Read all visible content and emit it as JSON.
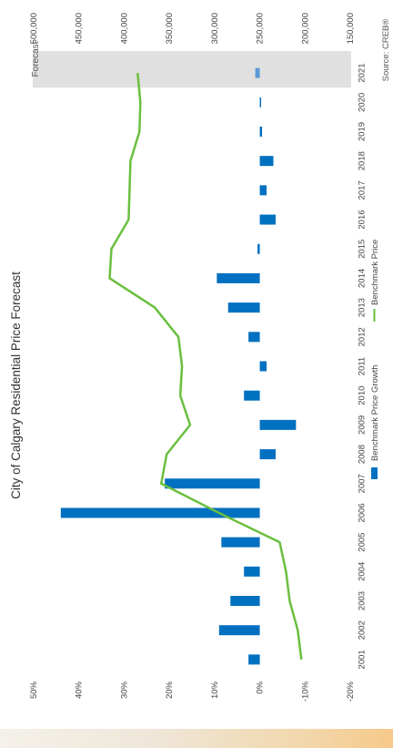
{
  "chart_data": {
    "type": "bar+line",
    "title": "City of Calgary Residential Price Forecast",
    "source": "Source: CREB®",
    "forecast_label": "Forecast",
    "categories": [
      "2001",
      "2002",
      "2003",
      "2004",
      "2005",
      "2006",
      "2007",
      "2008",
      "2009",
      "2010",
      "2011",
      "2012",
      "2013",
      "2014",
      "2015",
      "2016",
      "2017",
      "2018",
      "2019",
      "2020",
      "2021"
    ],
    "bar_series": {
      "name": "Benchmark Price Growth",
      "color": "#0070c0",
      "forecast_color": "#5b9bd5",
      "values": [
        2.5,
        9.0,
        6.5,
        3.5,
        8.5,
        44.0,
        21.0,
        -3.5,
        -8.0,
        3.5,
        -1.5,
        2.5,
        7.0,
        9.5,
        0.5,
        -3.5,
        -1.5,
        -3.0,
        -0.5,
        0.0,
        1.0
      ]
    },
    "line_series": {
      "name": "Benchmark Price",
      "color": "#6abf3f",
      "values": [
        204000,
        208000,
        217000,
        221000,
        228000,
        295000,
        359000,
        353000,
        327000,
        338000,
        336000,
        340000,
        366000,
        416000,
        414000,
        395000,
        394000,
        393000,
        383000,
        382000,
        385000
      ]
    },
    "axis_growth": {
      "ylim": [
        -20,
        50
      ],
      "ticks": [
        "-20%",
        "-10%",
        "0%",
        "10%",
        "20%",
        "30%",
        "40%",
        "50%"
      ]
    },
    "axis_price": {
      "ylim": [
        150000,
        500000
      ],
      "ticks": [
        "150,000",
        "200,000",
        "250,000",
        "300,000",
        "350,000",
        "400,000",
        "450,000",
        "500,000"
      ]
    },
    "forecast_categories": [
      "2021"
    ],
    "grid": false,
    "legend_position": "bottom"
  }
}
